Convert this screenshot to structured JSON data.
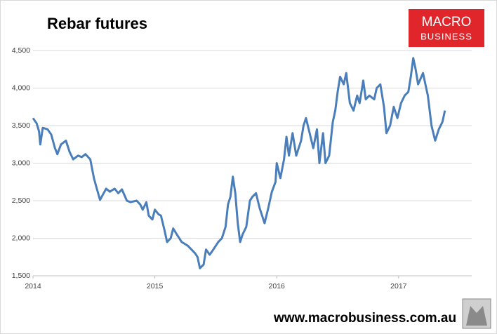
{
  "chart_data": {
    "type": "line",
    "title": "Rebar futures",
    "x": [
      2014.0,
      2014.03,
      2014.05,
      2014.06,
      2014.08,
      2014.12,
      2014.15,
      2014.18,
      2014.2,
      2014.23,
      2014.27,
      2014.3,
      2014.33,
      2014.37,
      2014.4,
      2014.43,
      2014.47,
      2014.5,
      2014.52,
      2014.55,
      2014.58,
      2014.6,
      2014.63,
      2014.67,
      2014.7,
      2014.73,
      2014.77,
      2014.8,
      2014.85,
      2014.88,
      2014.9,
      2014.93,
      2014.95,
      2014.98,
      2015.0,
      2015.03,
      2015.05,
      2015.08,
      2015.1,
      2015.13,
      2015.15,
      2015.18,
      2015.22,
      2015.27,
      2015.3,
      2015.33,
      2015.35,
      2015.37,
      2015.4,
      2015.42,
      2015.45,
      2015.48,
      2015.52,
      2015.55,
      2015.58,
      2015.6,
      2015.62,
      2015.64,
      2015.66,
      2015.68,
      2015.7,
      2015.72,
      2015.75,
      2015.78,
      2015.8,
      2015.83,
      2015.86,
      2015.9,
      2015.93,
      2015.96,
      2015.99,
      2016.0,
      2016.03,
      2016.06,
      2016.08,
      2016.1,
      2016.13,
      2016.16,
      2016.2,
      2016.22,
      2016.24,
      2016.27,
      2016.3,
      2016.33,
      2016.35,
      2016.38,
      2016.4,
      2016.43,
      2016.46,
      2016.48,
      2016.5,
      2016.52,
      2016.55,
      2016.57,
      2016.6,
      2016.63,
      2016.66,
      2016.68,
      2016.71,
      2016.73,
      2016.76,
      2016.8,
      2016.82,
      2016.85,
      2016.88,
      2016.9,
      2016.93,
      2016.96,
      2016.99,
      2017.02,
      2017.05,
      2017.08,
      2017.1,
      2017.12,
      2017.14,
      2017.16,
      2017.2,
      2017.22,
      2017.24,
      2017.27,
      2017.3,
      2017.33,
      2017.36,
      2017.38
    ],
    "series": [
      {
        "name": "Rebar futures",
        "color": "#4a7ebb",
        "values": [
          3600,
          3530,
          3420,
          3250,
          3470,
          3450,
          3380,
          3200,
          3120,
          3250,
          3300,
          3150,
          3050,
          3100,
          3080,
          3120,
          3050,
          2800,
          2680,
          2510,
          2600,
          2660,
          2620,
          2660,
          2600,
          2650,
          2500,
          2480,
          2500,
          2450,
          2380,
          2480,
          2300,
          2250,
          2380,
          2320,
          2300,
          2100,
          1950,
          2000,
          2130,
          2050,
          1950,
          1900,
          1850,
          1800,
          1750,
          1600,
          1650,
          1850,
          1780,
          1850,
          1950,
          2000,
          2150,
          2450,
          2550,
          2820,
          2600,
          2200,
          1950,
          2050,
          2150,
          2500,
          2550,
          2600,
          2400,
          2200,
          2400,
          2620,
          2750,
          3000,
          2800,
          3050,
          3350,
          3100,
          3400,
          3100,
          3300,
          3500,
          3600,
          3400,
          3200,
          3450,
          3000,
          3400,
          3000,
          3100,
          3550,
          3700,
          3950,
          4150,
          4050,
          4200,
          3800,
          3700,
          3900,
          3800,
          4100,
          3850,
          3900,
          3850,
          4000,
          4050,
          3750,
          3400,
          3500,
          3750,
          3600,
          3800,
          3900,
          3950,
          4150,
          4400,
          4250,
          4050,
          4200,
          4050,
          3900,
          3500,
          3300,
          3450,
          3550,
          3700
        ]
      }
    ],
    "xlim": [
      2014,
      2017.6
    ],
    "xticks": [
      2014,
      2015,
      2016,
      2017
    ],
    "ylim": [
      1500,
      4500
    ],
    "yticks": [
      {
        "value": 1500,
        "label": "1,500"
      },
      {
        "value": 2000,
        "label": "2,000"
      },
      {
        "value": 2500,
        "label": "2,500"
      },
      {
        "value": 3000,
        "label": "3,000"
      },
      {
        "value": 3500,
        "label": "3,500"
      },
      {
        "value": 4000,
        "label": "4,000"
      },
      {
        "value": 4500,
        "label": "4,500"
      }
    ],
    "grid": true
  },
  "branding": {
    "logo": [
      "MACRO",
      "BUSINESS"
    ],
    "website": "www.macrobusiness.com.au"
  }
}
